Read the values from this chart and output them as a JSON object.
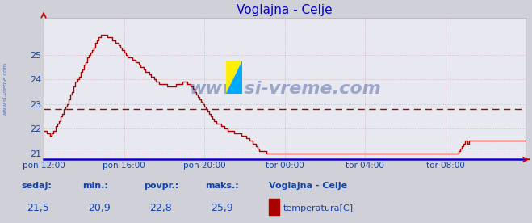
{
  "title": "Voglajna - Celje",
  "title_color": "#0000cc",
  "background_color": "#d0d0d8",
  "plot_bg_color": "#e8e8f0",
  "line_color": "#aa0000",
  "avg_line_value": 22.8,
  "avg_line_color": "#aa0000",
  "ylim": [
    20.75,
    26.5
  ],
  "yticks": [
    21,
    22,
    23,
    24,
    25
  ],
  "xtick_labels": [
    "pon 12:00",
    "pon 16:00",
    "pon 20:00",
    "tor 00:00",
    "tor 04:00",
    "tor 08:00"
  ],
  "xtick_positions": [
    0,
    48,
    96,
    144,
    192,
    240
  ],
  "n_points": 289,
  "watermark": "www.si-vreme.com",
  "watermark_color": "#1a3a8a",
  "watermark_alpha": 0.38,
  "side_label": "www.si-vreme.com",
  "side_label_color": "#3355aa",
  "footer_labels": [
    "sedaj:",
    "min.:",
    "povpr.:",
    "maks.:"
  ],
  "footer_values": [
    "21,5",
    "20,9",
    "22,8",
    "25,9"
  ],
  "footer_series_name": "Voglajna - Celje",
  "footer_legend_label": "temperatura[C]",
  "footer_color": "#1144aa",
  "grid_color": "#cc8888",
  "grid_alpha": 0.6,
  "temperatures": [
    21.9,
    21.9,
    21.8,
    21.8,
    21.7,
    21.8,
    21.9,
    22.1,
    22.2,
    22.3,
    22.5,
    22.6,
    22.8,
    22.9,
    23.0,
    23.2,
    23.4,
    23.5,
    23.7,
    23.9,
    24.0,
    24.1,
    24.3,
    24.4,
    24.6,
    24.7,
    24.9,
    25.0,
    25.1,
    25.2,
    25.3,
    25.5,
    25.6,
    25.7,
    25.8,
    25.8,
    25.8,
    25.8,
    25.7,
    25.7,
    25.7,
    25.6,
    25.6,
    25.5,
    25.5,
    25.4,
    25.3,
    25.2,
    25.1,
    25.0,
    24.9,
    24.9,
    24.9,
    24.8,
    24.8,
    24.7,
    24.7,
    24.6,
    24.5,
    24.5,
    24.4,
    24.3,
    24.3,
    24.2,
    24.1,
    24.1,
    24.0,
    23.9,
    23.9,
    23.8,
    23.8,
    23.8,
    23.8,
    23.8,
    23.7,
    23.7,
    23.7,
    23.7,
    23.7,
    23.8,
    23.8,
    23.8,
    23.8,
    23.9,
    23.9,
    23.9,
    23.8,
    23.8,
    23.7,
    23.6,
    23.5,
    23.4,
    23.3,
    23.2,
    23.1,
    23.0,
    22.9,
    22.8,
    22.7,
    22.6,
    22.5,
    22.4,
    22.3,
    22.2,
    22.2,
    22.2,
    22.1,
    22.1,
    22.0,
    22.0,
    21.9,
    21.9,
    21.9,
    21.9,
    21.8,
    21.8,
    21.8,
    21.8,
    21.7,
    21.7,
    21.7,
    21.6,
    21.6,
    21.5,
    21.5,
    21.4,
    21.4,
    21.3,
    21.2,
    21.1,
    21.1,
    21.1,
    21.1,
    21.0,
    21.0,
    21.0,
    21.0,
    21.0,
    21.0,
    21.0,
    21.0,
    21.0,
    21.0,
    21.0,
    21.0,
    21.0,
    21.0,
    21.0,
    21.0,
    21.0,
    21.0,
    21.0,
    21.0,
    21.0,
    21.0,
    21.0,
    21.0,
    21.0,
    21.0,
    21.0,
    21.0,
    21.0,
    21.0,
    21.0,
    21.0,
    21.0,
    21.0,
    21.0,
    21.0,
    21.0,
    21.0,
    21.0,
    21.0,
    21.0,
    21.0,
    21.0,
    21.0,
    21.0,
    21.0,
    21.0,
    21.0,
    21.0,
    21.0,
    21.0,
    21.0,
    21.0,
    21.0,
    21.0,
    21.0,
    21.0,
    21.0,
    21.0,
    21.0,
    21.0,
    21.0,
    21.0,
    21.0,
    21.0,
    21.0,
    21.0,
    21.0,
    21.0,
    21.0,
    21.0,
    21.0,
    21.0,
    21.0,
    21.0,
    21.0,
    21.0,
    21.0,
    21.0,
    21.0,
    21.0,
    21.0,
    21.0,
    21.0,
    21.0,
    21.0,
    21.0,
    21.0,
    21.0,
    21.0,
    21.0,
    21.0,
    21.0,
    21.0,
    21.0,
    21.0,
    21.0,
    21.0,
    21.0,
    21.0,
    21.0,
    21.0,
    21.0,
    21.0,
    21.0,
    21.0,
    21.0,
    21.0,
    21.0,
    21.0,
    21.0,
    21.0,
    21.0,
    21.0,
    21.0,
    21.1,
    21.2,
    21.3,
    21.4,
    21.5,
    21.4,
    21.5,
    21.5,
    21.5,
    21.5,
    21.5,
    21.5,
    21.5,
    21.5,
    21.5,
    21.5,
    21.5,
    21.5,
    21.5,
    21.5,
    21.5,
    21.5,
    21.5,
    21.5,
    21.5,
    21.5,
    21.5,
    21.5,
    21.5,
    21.5,
    21.5,
    21.5,
    21.5,
    21.5,
    21.5,
    21.5,
    21.5,
    21.5,
    21.5,
    21.5,
    21.5
  ]
}
